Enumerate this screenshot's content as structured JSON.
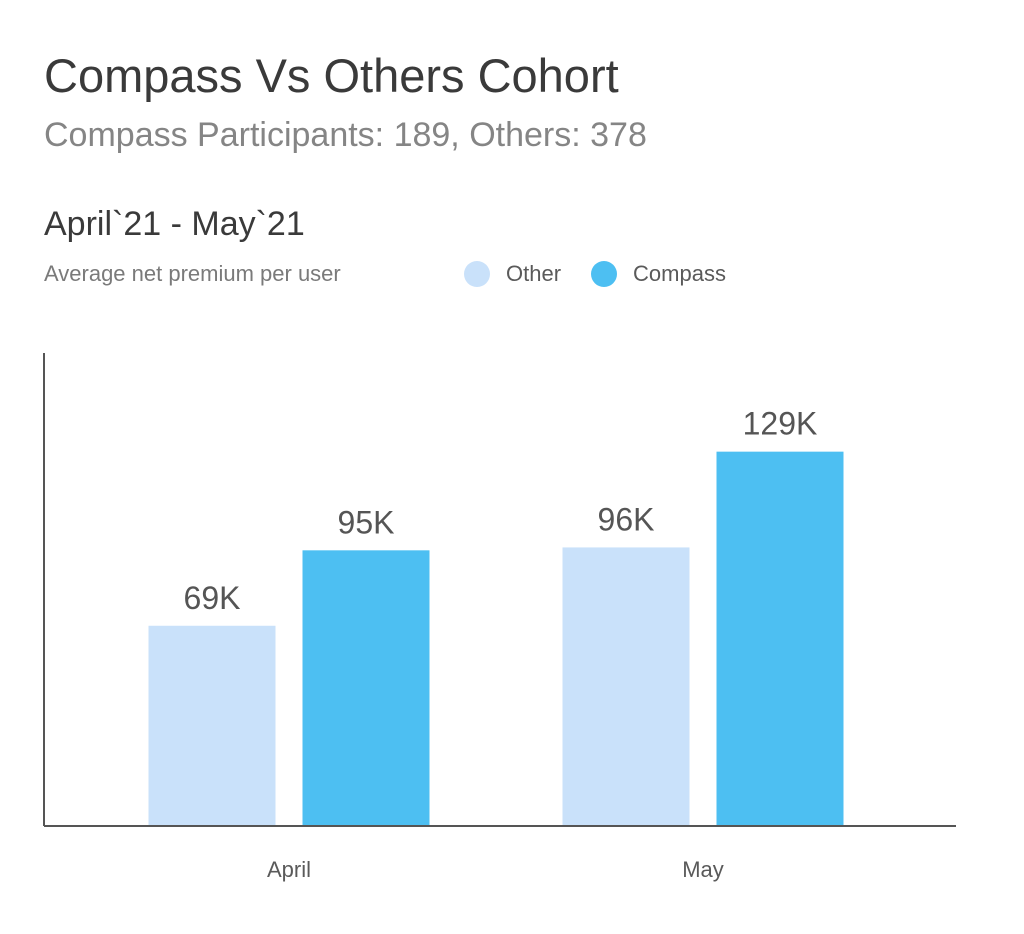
{
  "header": {
    "title": "Compass Vs Others Cohort",
    "subtitle": "Compass Participants: 189, Others: 378",
    "period": "April`21 - May`21",
    "metric": "Average net premium per user"
  },
  "legend": [
    {
      "name": "Other",
      "color": "#c9e1fa"
    },
    {
      "name": "Compass",
      "color": "#4dbff2"
    }
  ],
  "chart_data": {
    "type": "bar",
    "title": "Compass Vs Others Cohort",
    "subtitle": "Compass Participants: 189, Others: 378",
    "ylabel": "Average net premium per user",
    "categories": [
      "April",
      "May"
    ],
    "series": [
      {
        "name": "Other",
        "color": "#c9e1fa",
        "values": [
          69000,
          96000
        ],
        "labels": [
          "69K",
          "96K"
        ]
      },
      {
        "name": "Compass",
        "color": "#4dbff2",
        "values": [
          95000,
          129000
        ],
        "labels": [
          "95K",
          "129K"
        ]
      }
    ],
    "ylim": [
      0,
      163000
    ],
    "grid": false,
    "legend_position": "top"
  }
}
